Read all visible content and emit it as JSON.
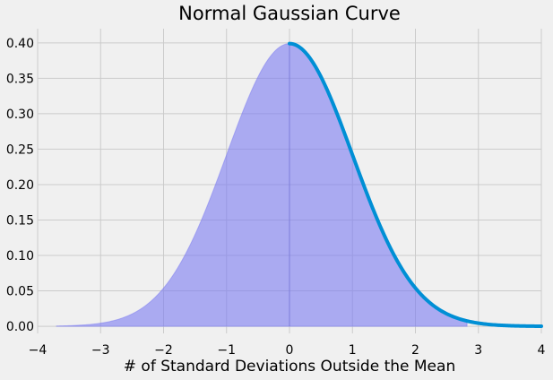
{
  "chart_data": {
    "type": "area",
    "title": "Normal Gaussian Curve",
    "xlabel": "# of Standard Deviations Outside the Mean",
    "ylabel": "",
    "xlim": [
      -4,
      4
    ],
    "ylim": [
      -0.01,
      0.42
    ],
    "x_ticks": [
      "−4",
      "−3",
      "−2",
      "−1",
      "0",
      "1",
      "2",
      "3",
      "4"
    ],
    "y_ticks": [
      "0.00",
      "0.05",
      "0.10",
      "0.15",
      "0.20",
      "0.25",
      "0.30",
      "0.35",
      "0.40"
    ],
    "grid": true,
    "series": [
      {
        "kind": "line",
        "function": "standard normal pdf",
        "mean": 0,
        "std": 1,
        "x_range": [
          0,
          4
        ],
        "color": "#008fd5"
      },
      {
        "kind": "filled-area",
        "function": "standard normal pdf",
        "mean": 0,
        "std": 1,
        "x_range": [
          -3.7,
          2.82
        ],
        "color": "#7b7bf2"
      }
    ],
    "divider_x": 0,
    "colors": {
      "background": "#f0f0f0",
      "grid": "#cbcbcb",
      "line": "#008fd5",
      "fill": "#7b7bf2",
      "text": "#000000"
    }
  }
}
